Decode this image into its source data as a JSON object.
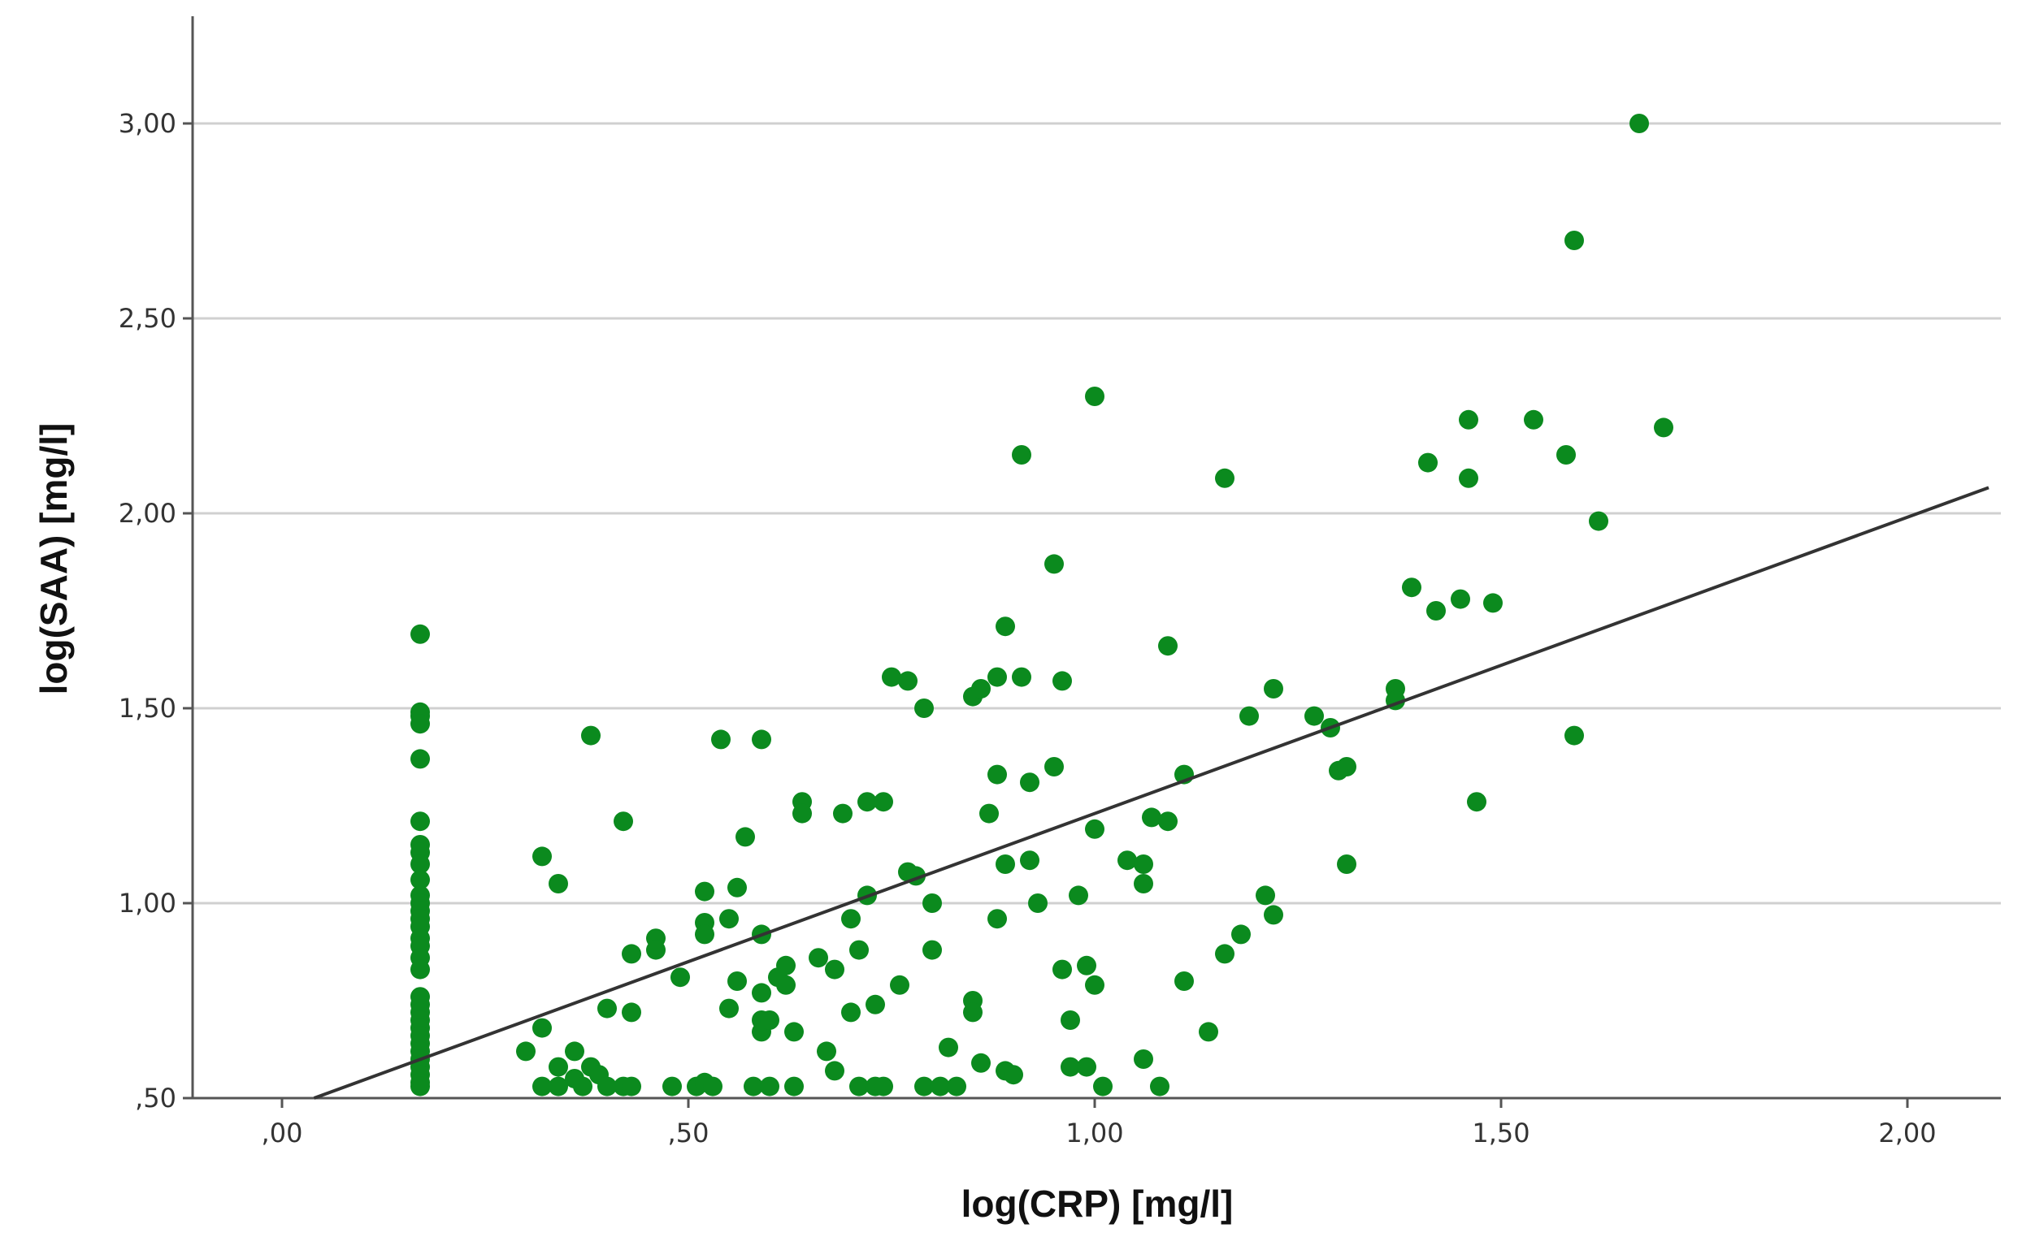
{
  "chart_data": {
    "type": "scatter",
    "title": "",
    "xlabel": "log(CRP) [mg/l]",
    "ylabel": "log(SAA) [mg/l]",
    "xlim": [
      -0.1,
      2.1
    ],
    "ylim": [
      0.5,
      3.25
    ],
    "x_ticks": [
      0.0,
      0.5,
      1.0,
      1.5,
      2.0
    ],
    "x_tick_labels": [
      ",00",
      ",50",
      "1,00",
      "1,50",
      "2,00"
    ],
    "y_ticks": [
      0.5,
      1.0,
      1.5,
      2.0,
      2.5,
      3.0
    ],
    "y_tick_labels": [
      ",50",
      "1,00",
      "1,50",
      "2,00",
      "2,50",
      "3,00"
    ],
    "grid": "horizontal",
    "legend": "none",
    "colors": {
      "points": "#0b8a1e",
      "fit_line": "#333333",
      "grid": "#d0d0d0"
    },
    "fit_line": {
      "slope": 0.76,
      "intercept": 0.47
    },
    "series": [
      {
        "values": [
          [
            0.17,
            1.69
          ],
          [
            0.17,
            1.49
          ],
          [
            0.17,
            1.48
          ],
          [
            0.17,
            1.46
          ],
          [
            0.17,
            1.37
          ],
          [
            0.17,
            1.21
          ],
          [
            0.17,
            1.15
          ],
          [
            0.17,
            1.13
          ],
          [
            0.17,
            1.1
          ],
          [
            0.17,
            1.06
          ],
          [
            0.17,
            1.02
          ],
          [
            0.17,
            1.0
          ],
          [
            0.17,
            0.98
          ],
          [
            0.17,
            0.96
          ],
          [
            0.17,
            0.94
          ],
          [
            0.17,
            0.91
          ],
          [
            0.17,
            0.89
          ],
          [
            0.17,
            0.86
          ],
          [
            0.17,
            0.83
          ],
          [
            0.17,
            0.76
          ],
          [
            0.17,
            0.74
          ],
          [
            0.17,
            0.72
          ],
          [
            0.17,
            0.7
          ],
          [
            0.17,
            0.68
          ],
          [
            0.17,
            0.66
          ],
          [
            0.17,
            0.64
          ],
          [
            0.17,
            0.62
          ],
          [
            0.17,
            0.6
          ],
          [
            0.17,
            0.58
          ],
          [
            0.17,
            0.56
          ],
          [
            0.17,
            0.54
          ],
          [
            0.17,
            0.53
          ],
          [
            0.3,
            0.62
          ],
          [
            0.32,
            1.12
          ],
          [
            0.32,
            0.68
          ],
          [
            0.32,
            0.53
          ],
          [
            0.34,
            1.05
          ],
          [
            0.34,
            0.58
          ],
          [
            0.34,
            0.53
          ],
          [
            0.36,
            0.62
          ],
          [
            0.36,
            0.55
          ],
          [
            0.37,
            0.53
          ],
          [
            0.38,
            1.43
          ],
          [
            0.38,
            0.58
          ],
          [
            0.39,
            0.56
          ],
          [
            0.4,
            0.73
          ],
          [
            0.4,
            0.53
          ],
          [
            0.42,
            1.21
          ],
          [
            0.42,
            0.53
          ],
          [
            0.43,
            0.87
          ],
          [
            0.43,
            0.72
          ],
          [
            0.43,
            0.53
          ],
          [
            0.46,
            0.91
          ],
          [
            0.46,
            0.88
          ],
          [
            0.48,
            0.53
          ],
          [
            0.49,
            0.81
          ],
          [
            0.51,
            0.53
          ],
          [
            0.52,
            1.03
          ],
          [
            0.52,
            0.95
          ],
          [
            0.52,
            0.92
          ],
          [
            0.52,
            0.54
          ],
          [
            0.53,
            0.53
          ],
          [
            0.54,
            1.42
          ],
          [
            0.55,
            0.96
          ],
          [
            0.55,
            0.73
          ],
          [
            0.56,
            1.04
          ],
          [
            0.56,
            0.8
          ],
          [
            0.57,
            1.17
          ],
          [
            0.58,
            0.53
          ],
          [
            0.59,
            1.42
          ],
          [
            0.59,
            0.92
          ],
          [
            0.59,
            0.77
          ],
          [
            0.59,
            0.7
          ],
          [
            0.59,
            0.67
          ],
          [
            0.6,
            0.7
          ],
          [
            0.6,
            0.53
          ],
          [
            0.61,
            0.81
          ],
          [
            0.62,
            0.84
          ],
          [
            0.62,
            0.79
          ],
          [
            0.63,
            0.67
          ],
          [
            0.63,
            0.53
          ],
          [
            0.64,
            1.26
          ],
          [
            0.64,
            1.23
          ],
          [
            0.66,
            0.86
          ],
          [
            0.67,
            0.62
          ],
          [
            0.68,
            0.83
          ],
          [
            0.68,
            0.57
          ],
          [
            0.69,
            1.23
          ],
          [
            0.7,
            0.96
          ],
          [
            0.7,
            0.72
          ],
          [
            0.71,
            0.88
          ],
          [
            0.71,
            0.53
          ],
          [
            0.72,
            1.26
          ],
          [
            0.72,
            1.02
          ],
          [
            0.73,
            0.74
          ],
          [
            0.73,
            0.53
          ],
          [
            0.74,
            1.26
          ],
          [
            0.74,
            0.53
          ],
          [
            0.75,
            1.58
          ],
          [
            0.76,
            0.79
          ],
          [
            0.77,
            1.57
          ],
          [
            0.77,
            1.08
          ],
          [
            0.78,
            1.07
          ],
          [
            0.79,
            1.5
          ],
          [
            0.79,
            0.53
          ],
          [
            0.8,
            1.0
          ],
          [
            0.8,
            0.88
          ],
          [
            0.81,
            0.53
          ],
          [
            0.82,
            0.63
          ],
          [
            0.83,
            0.53
          ],
          [
            0.85,
            1.53
          ],
          [
            0.85,
            0.75
          ],
          [
            0.85,
            0.72
          ],
          [
            0.86,
            1.55
          ],
          [
            0.86,
            0.59
          ],
          [
            0.87,
            1.23
          ],
          [
            0.88,
            1.58
          ],
          [
            0.88,
            1.33
          ],
          [
            0.88,
            0.96
          ],
          [
            0.89,
            1.71
          ],
          [
            0.89,
            1.1
          ],
          [
            0.89,
            0.57
          ],
          [
            0.9,
            0.56
          ],
          [
            0.91,
            2.15
          ],
          [
            0.91,
            1.58
          ],
          [
            0.92,
            1.11
          ],
          [
            0.92,
            1.31
          ],
          [
            0.93,
            1.0
          ],
          [
            0.95,
            1.87
          ],
          [
            0.95,
            1.35
          ],
          [
            0.96,
            1.57
          ],
          [
            0.96,
            0.83
          ],
          [
            0.97,
            0.7
          ],
          [
            0.97,
            0.58
          ],
          [
            0.98,
            1.02
          ],
          [
            0.99,
            0.58
          ],
          [
            0.99,
            0.84
          ],
          [
            1.0,
            2.3
          ],
          [
            1.0,
            1.19
          ],
          [
            1.0,
            0.79
          ],
          [
            1.01,
            0.53
          ],
          [
            1.04,
            1.11
          ],
          [
            1.06,
            1.1
          ],
          [
            1.06,
            1.05
          ],
          [
            1.06,
            0.6
          ],
          [
            1.07,
            1.22
          ],
          [
            1.08,
            0.53
          ],
          [
            1.09,
            1.66
          ],
          [
            1.09,
            1.21
          ],
          [
            1.11,
            1.33
          ],
          [
            1.11,
            0.8
          ],
          [
            1.14,
            0.67
          ],
          [
            1.16,
            2.09
          ],
          [
            1.16,
            0.87
          ],
          [
            1.18,
            0.92
          ],
          [
            1.19,
            1.48
          ],
          [
            1.21,
            1.02
          ],
          [
            1.22,
            1.55
          ],
          [
            1.22,
            0.97
          ],
          [
            1.27,
            1.48
          ],
          [
            1.29,
            1.45
          ],
          [
            1.3,
            1.34
          ],
          [
            1.31,
            1.35
          ],
          [
            1.31,
            1.1
          ],
          [
            1.37,
            1.55
          ],
          [
            1.37,
            1.52
          ],
          [
            1.39,
            1.81
          ],
          [
            1.41,
            2.13
          ],
          [
            1.42,
            1.75
          ],
          [
            1.45,
            1.78
          ],
          [
            1.46,
            2.24
          ],
          [
            1.46,
            2.09
          ],
          [
            1.47,
            1.26
          ],
          [
            1.49,
            1.77
          ],
          [
            1.54,
            2.24
          ],
          [
            1.58,
            2.15
          ],
          [
            1.59,
            2.7
          ],
          [
            1.59,
            1.43
          ],
          [
            1.62,
            1.98
          ],
          [
            1.67,
            3.0
          ],
          [
            1.7,
            2.22
          ]
        ]
      }
    ]
  }
}
